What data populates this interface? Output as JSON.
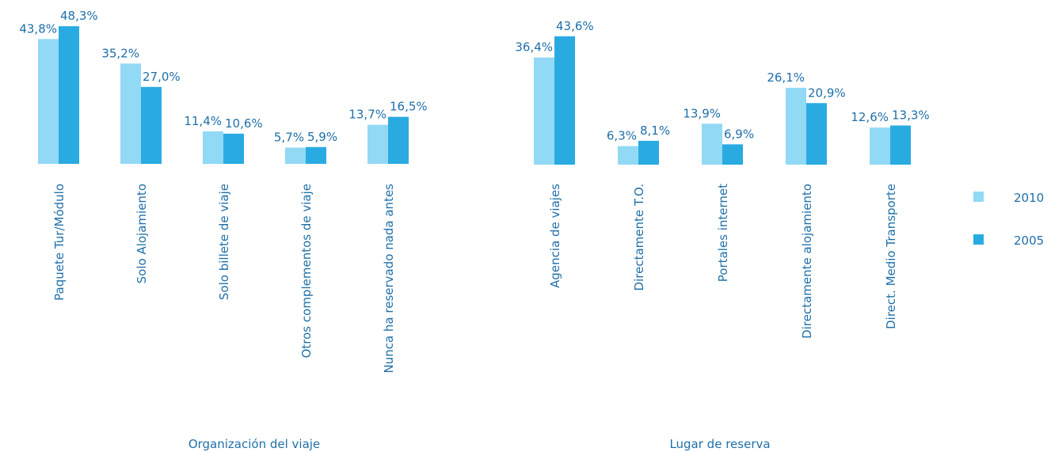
{
  "chart_data": [
    {
      "type": "bar",
      "x_label": "Organización del viaje",
      "categories": [
        "Paquete Tur/Módulo",
        "Solo Alojamiento",
        "Solo billete de viaje",
        "Otros complementos de viaje",
        "Nunca ha reservado nada antes"
      ],
      "series": [
        {
          "name": "2010",
          "color": "#92d9f5",
          "values": [
            43.8,
            35.2,
            11.4,
            5.7,
            13.7
          ],
          "value_labels": [
            "43,8%",
            "35,2%",
            "11,4%",
            "5,7%",
            "13,7%"
          ]
        },
        {
          "name": "2005",
          "color": "#29abe2",
          "values": [
            48.3,
            27.0,
            10.6,
            5.9,
            16.5
          ],
          "value_labels": [
            "48,3%",
            "27,0%",
            "10,6%",
            "5,9%",
            "16,5%"
          ]
        }
      ]
    },
    {
      "type": "bar",
      "x_label": "Lugar de reserva",
      "categories": [
        "Agencia de viajes",
        "Directamente T.O.",
        "Portales internet",
        "Directamente alojamiento",
        "Direct. Medio Transporte"
      ],
      "series": [
        {
          "name": "2010",
          "color": "#92d9f5",
          "values": [
            36.4,
            6.3,
            13.9,
            26.1,
            12.6
          ],
          "value_labels": [
            "36,4%",
            "6,3%",
            "13,9%",
            "26,1%",
            "12,6%"
          ]
        },
        {
          "name": "2005",
          "color": "#29abe2",
          "values": [
            43.6,
            8.1,
            6.9,
            20.9,
            13.3
          ],
          "value_labels": [
            "43,6%",
            "8,1%",
            "6,9%",
            "20,9%",
            "13,3%"
          ]
        }
      ]
    }
  ]
}
